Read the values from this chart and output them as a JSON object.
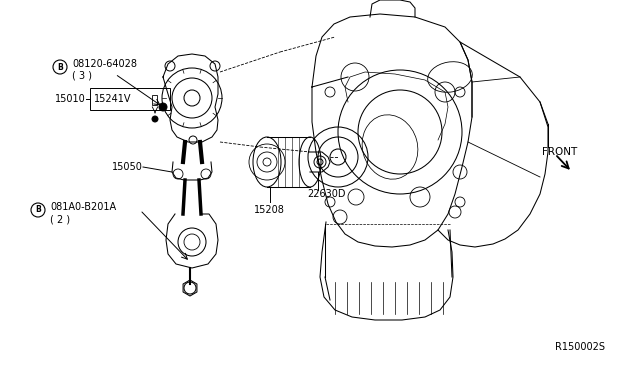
{
  "bg_color": "#ffffff",
  "fig_width": 6.4,
  "fig_height": 3.72,
  "dpi": 100,
  "labels": {
    "bolt1_num": "08120-64028",
    "bolt1_qty": "( 3 )",
    "part15010": "15010",
    "part15241V": "15241V",
    "part15050": "15050",
    "bolt2_num": "081A0-B201A",
    "bolt2_qty": "( 2 )",
    "part22630D": "22630D",
    "part15208": "15208",
    "front": "FRONT",
    "ref": "R150002S"
  }
}
